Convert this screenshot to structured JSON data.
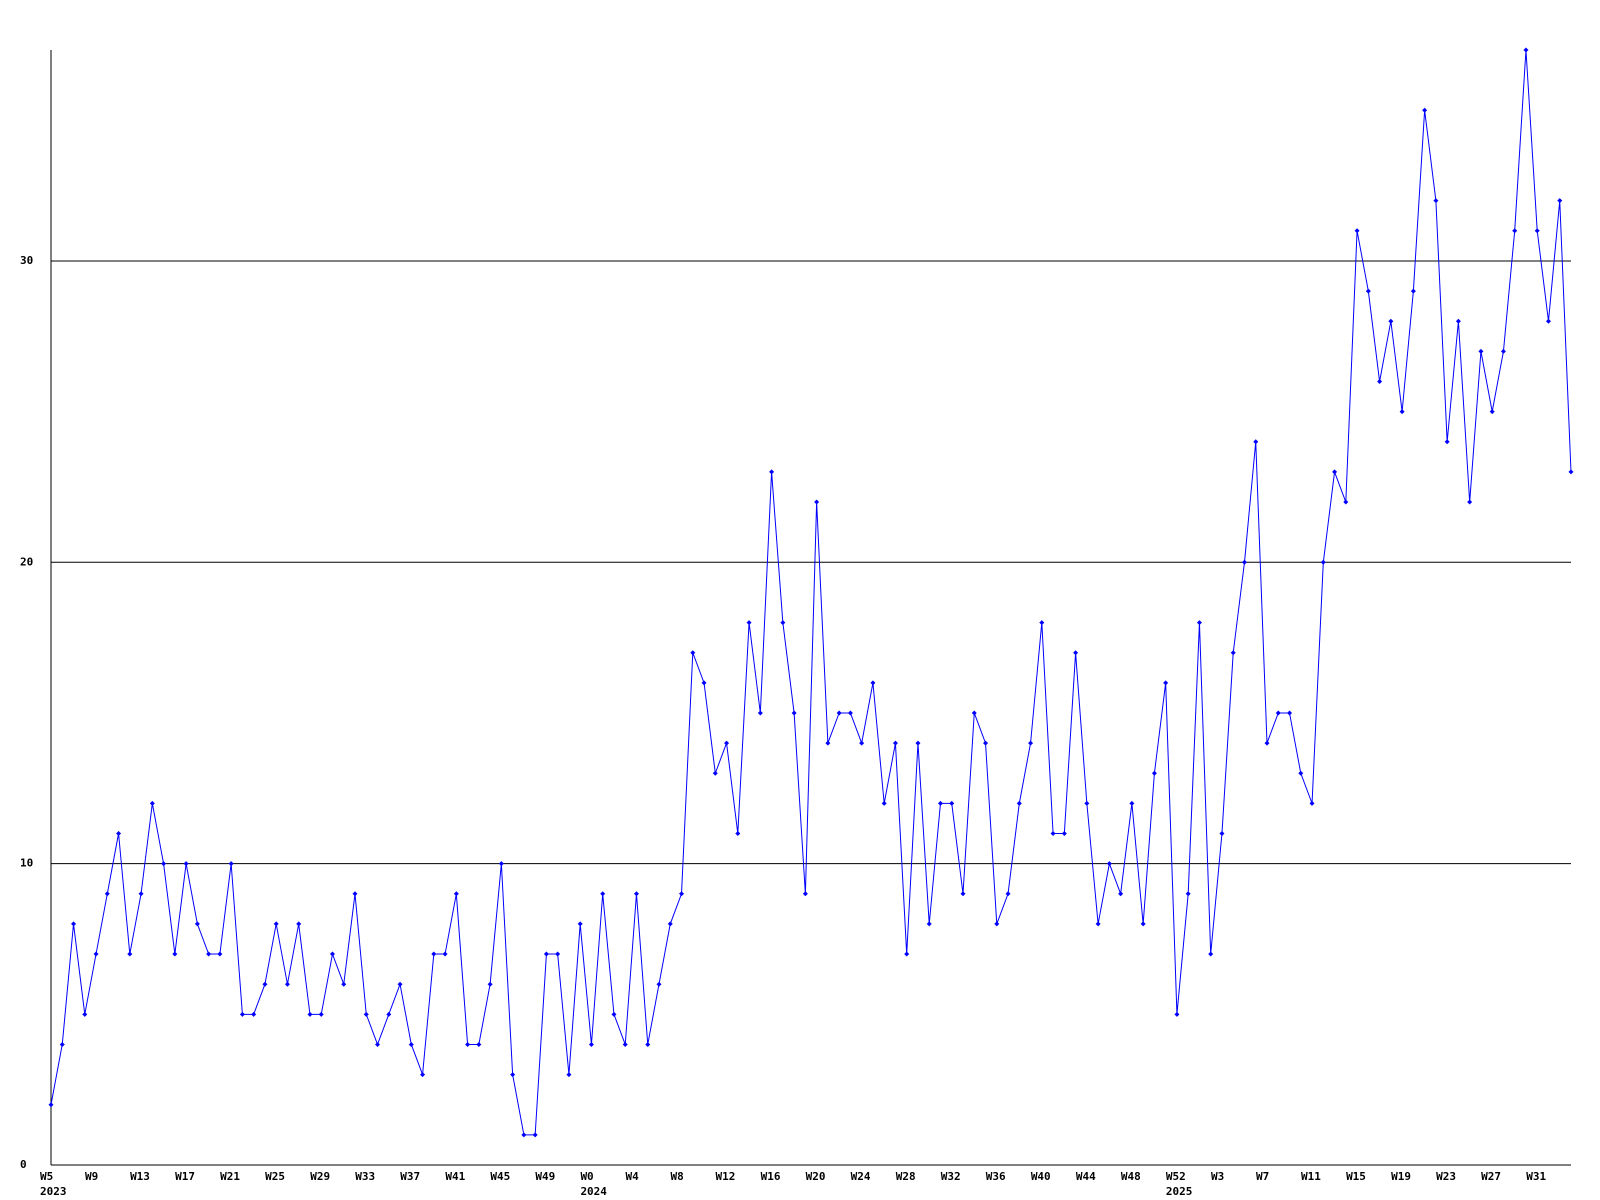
{
  "chart_data": {
    "type": "line",
    "color": "#0000ff",
    "categories": [
      "W5",
      null,
      null,
      null,
      "W9",
      null,
      null,
      null,
      "W13",
      null,
      null,
      null,
      "W17",
      null,
      null,
      null,
      "W21",
      null,
      null,
      null,
      "W25",
      null,
      null,
      null,
      "W29",
      null,
      null,
      null,
      "W33",
      null,
      null,
      null,
      "W37",
      null,
      null,
      null,
      "W41",
      null,
      null,
      null,
      "W45",
      null,
      null,
      null,
      "W49",
      null,
      null,
      null,
      "W0",
      null,
      null,
      null,
      "W4",
      null,
      null,
      null,
      "W8",
      null,
      null,
      null,
      "W12",
      null,
      null,
      null,
      "W16",
      null,
      null,
      null,
      "W20",
      null,
      null,
      null,
      "W24",
      null,
      null,
      null,
      "W28",
      null,
      null,
      null,
      "W32",
      null,
      null,
      null,
      "W36",
      null,
      null,
      null,
      "W40",
      null,
      null,
      null,
      "W44",
      null,
      null,
      null,
      "W48",
      null,
      null,
      null,
      "W52",
      null,
      null,
      null,
      "W3",
      null,
      null,
      null,
      "W7",
      null,
      null,
      null,
      "W11",
      null,
      null,
      null,
      "W15",
      null,
      null,
      null,
      "W19",
      null,
      null,
      null,
      "W23",
      null,
      null,
      null,
      "W27",
      null,
      null,
      null,
      "W31",
      null,
      null,
      null
    ],
    "year_categories": [
      "2023",
      null,
      null,
      null,
      null,
      null,
      null,
      null,
      null,
      null,
      null,
      null,
      null,
      null,
      null,
      null,
      null,
      null,
      null,
      null,
      null,
      null,
      null,
      null,
      null,
      null,
      null,
      null,
      null,
      null,
      null,
      null,
      null,
      null,
      null,
      null,
      null,
      null,
      null,
      null,
      null,
      null,
      null,
      null,
      null,
      null,
      null,
      null,
      "2024",
      null,
      null,
      null,
      null,
      null,
      null,
      null,
      null,
      null,
      null,
      null,
      null,
      null,
      null,
      null,
      null,
      null,
      null,
      null,
      null,
      null,
      null,
      null,
      null,
      null,
      null,
      null,
      null,
      null,
      null,
      null,
      null,
      null,
      null,
      null,
      null,
      null,
      null,
      null,
      null,
      null,
      null,
      null,
      null,
      null,
      null,
      null,
      null,
      null,
      null,
      null,
      "2025",
      null,
      null,
      null,
      null,
      null,
      null,
      null,
      null,
      null,
      null,
      null,
      null,
      null,
      null,
      null,
      null,
      null,
      null,
      null,
      null,
      null,
      null,
      null,
      null,
      null,
      null,
      null,
      null,
      null,
      null,
      null,
      null,
      null,
      null,
      null
    ],
    "values": [
      2,
      4,
      8,
      5,
      7,
      9,
      11,
      7,
      9,
      12,
      10,
      7,
      10,
      8,
      7,
      7,
      10,
      5,
      5,
      6,
      8,
      6,
      8,
      5,
      5,
      7,
      6,
      9,
      5,
      4,
      5,
      6,
      4,
      3,
      7,
      7,
      9,
      4,
      4,
      6,
      10,
      3,
      1,
      1,
      7,
      7,
      3,
      8,
      4,
      9,
      5,
      4,
      9,
      4,
      6,
      8,
      9,
      17,
      16,
      13,
      14,
      11,
      18,
      15,
      23,
      18,
      15,
      9,
      22,
      14,
      15,
      15,
      14,
      16,
      12,
      14,
      7,
      14,
      8,
      12,
      12,
      9,
      15,
      14,
      8,
      9,
      12,
      14,
      18,
      11,
      11,
      17,
      12,
      8,
      10,
      9,
      12,
      8,
      13,
      16,
      5,
      9,
      18,
      7,
      11,
      17,
      20,
      24,
      14,
      15,
      15,
      13,
      12,
      20,
      23,
      22,
      31,
      29,
      26,
      28,
      25,
      29,
      35,
      32,
      24,
      28,
      22,
      27,
      25,
      27,
      31,
      37,
      31,
      28,
      32,
      23
    ],
    "ylim": [
      0,
      37
    ],
    "yticks": [
      0,
      10,
      20,
      30
    ],
    "grid": true
  }
}
